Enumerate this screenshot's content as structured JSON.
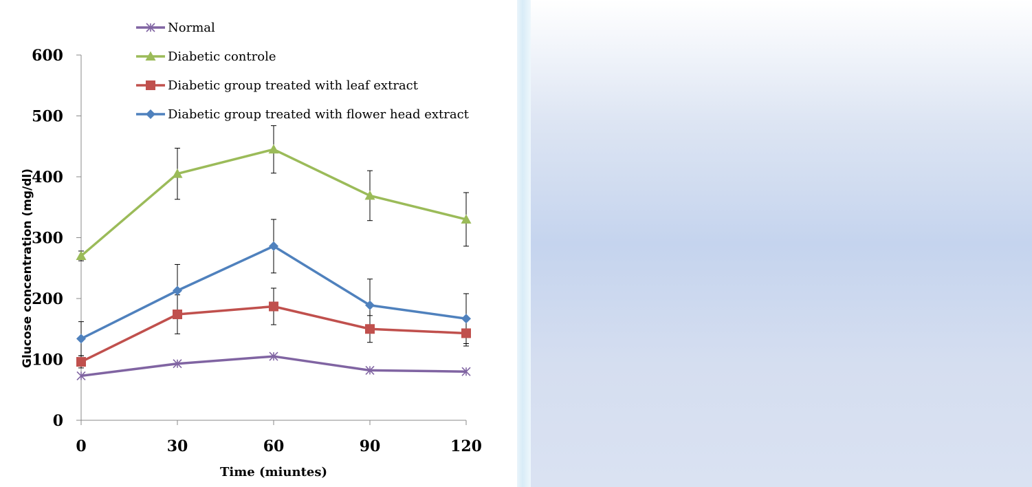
{
  "chart_data": {
    "type": "line",
    "x": [
      0,
      30,
      60,
      90,
      120
    ],
    "xticks": [
      "0",
      "30",
      "60",
      "90",
      "120"
    ],
    "xlabel": "Time (miuntes)",
    "ylabel": "Glucose concentration (mg/dl)",
    "ylim": [
      0,
      600
    ],
    "yticks": [
      "0",
      "100",
      "200",
      "300",
      "400",
      "500",
      "600"
    ],
    "grid": false,
    "legend_position": "top-right",
    "series": [
      {
        "name": "Normal",
        "color": "#8064a2",
        "marker": "x",
        "values": [
          73,
          93,
          105,
          82,
          80
        ],
        "errors": [
          0,
          0,
          0,
          0,
          0
        ]
      },
      {
        "name": "Diabetic controle",
        "color": "#9bbb59",
        "marker": "triangle",
        "values": [
          270,
          405,
          445,
          369,
          330
        ],
        "errors": [
          8,
          42,
          39,
          41,
          44
        ]
      },
      {
        "name": "Diabetic group treated with leaf extract",
        "color": "#c0504d",
        "marker": "square",
        "values": [
          96,
          174,
          187,
          150,
          143
        ],
        "errors": [
          10,
          32,
          30,
          22,
          21
        ]
      },
      {
        "name": "Diabetic group treated with flower head extract",
        "color": "#4f81bd",
        "marker": "diamond",
        "values": [
          134,
          213,
          286,
          189,
          167
        ],
        "errors": [
          28,
          43,
          44,
          43,
          41
        ]
      }
    ]
  }
}
